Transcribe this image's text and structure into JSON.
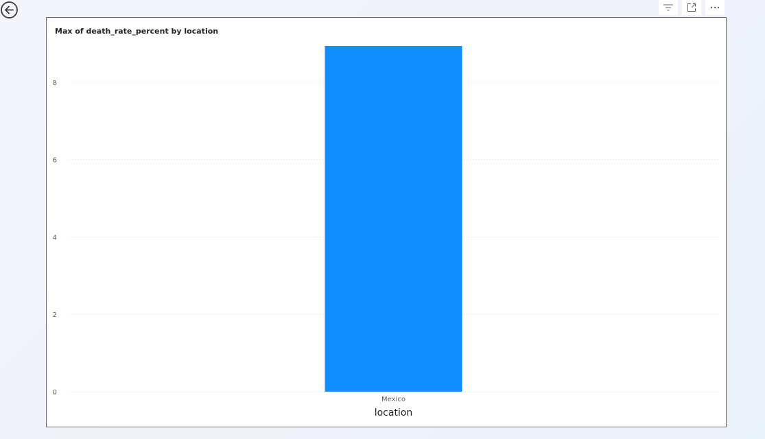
{
  "header": {
    "back_icon": "back-arrow-circle-icon",
    "actions": [
      {
        "name": "filter",
        "icon": "filter-lines-icon"
      },
      {
        "name": "focus-mode",
        "icon": "expand-icon"
      },
      {
        "name": "more-options",
        "icon": "more-ellipsis-icon"
      }
    ]
  },
  "visual": {
    "title": "Max of death_rate_percent by location"
  },
  "chart_data": {
    "type": "bar",
    "title": "Max of death_rate_percent by location",
    "categories": [
      "Mexico"
    ],
    "values": [
      8.94
    ],
    "xlabel": "location",
    "ylabel": "",
    "ylim": [
      0,
      8.94
    ],
    "yticks": [
      0,
      2,
      4,
      6,
      8
    ],
    "grid": true,
    "bar_color": "#118DFF",
    "grid_color": "#d9d9d9"
  }
}
